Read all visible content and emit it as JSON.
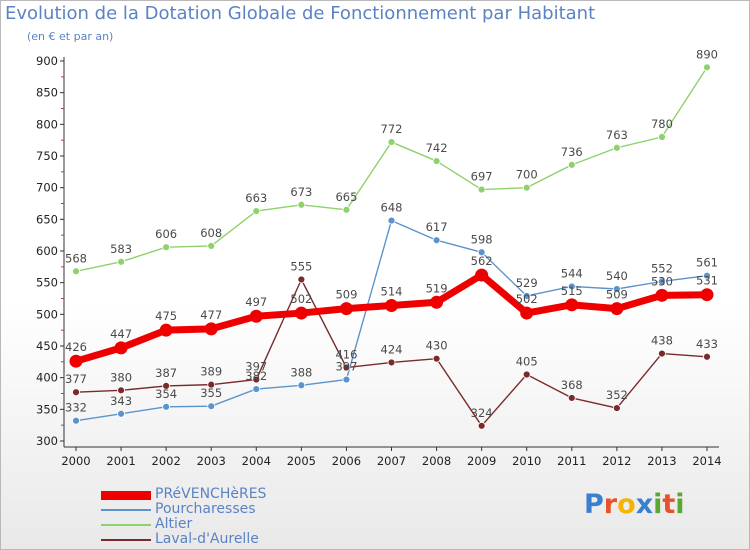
{
  "title": "Evolution de la Dotation Globale de Fonctionnement par Habitant",
  "subtitle": "(en € et par an)",
  "logo": {
    "text": "Proxiti",
    "letters": [
      {
        "ch": "P",
        "color": "#3b7fd0"
      },
      {
        "ch": "r",
        "color": "#e8522a"
      },
      {
        "ch": "o",
        "color": "#f4b400"
      },
      {
        "ch": "x",
        "color": "#3b7fd0"
      },
      {
        "ch": "i",
        "color": "#5aa832"
      },
      {
        "ch": "t",
        "color": "#e8522a"
      },
      {
        "ch": "i",
        "color": "#5aa832"
      }
    ]
  },
  "chart_data": {
    "type": "line",
    "x": [
      2000,
      2001,
      2002,
      2003,
      2004,
      2005,
      2006,
      2007,
      2008,
      2009,
      2010,
      2011,
      2012,
      2013,
      2014
    ],
    "ylim": [
      300,
      900
    ],
    "yticks": [
      300,
      350,
      400,
      450,
      500,
      550,
      600,
      650,
      700,
      750,
      800,
      850,
      900
    ],
    "grid": false,
    "legend_position": "bottom-left",
    "series": [
      {
        "name": "PRéVENCHèRES",
        "color": "#ee0000",
        "values": [
          426,
          447,
          475,
          477,
          497,
          502,
          509,
          514,
          519,
          562,
          502,
          515,
          509,
          530,
          531
        ],
        "labels": [
          "426",
          "447",
          "475",
          "477",
          "497",
          "502",
          "509",
          "514",
          "519",
          "562",
          "502",
          "515",
          "509",
          "530",
          "531"
        ]
      },
      {
        "name": "Pourcharesses",
        "color": "#5b94cc",
        "values": [
          332,
          343,
          354,
          355,
          382,
          388,
          397,
          648,
          617,
          598,
          529,
          544,
          540,
          552,
          561
        ],
        "labels": [
          "332",
          "343",
          "354",
          "355",
          "382",
          "388",
          "397",
          "648",
          "617",
          "598",
          "529",
          "544",
          "540",
          "552",
          "561"
        ]
      },
      {
        "name": "Altier",
        "color": "#8fd16c",
        "values": [
          568,
          583,
          606,
          608,
          663,
          673,
          665,
          772,
          742,
          697,
          700,
          736,
          763,
          780,
          890
        ],
        "labels": [
          "568",
          "583",
          "606",
          "608",
          "663",
          "673",
          "665",
          "772",
          "742",
          "697",
          "700",
          "736",
          "763",
          "780",
          "890"
        ]
      },
      {
        "name": "Laval-d'Aurelle",
        "color": "#7a2a2a",
        "values": [
          377,
          380,
          387,
          389,
          397,
          555,
          416,
          424,
          430,
          324,
          405,
          368,
          352,
          438,
          433
        ],
        "labels": [
          "377",
          "380",
          "387",
          "389",
          "397",
          "555",
          "416",
          "424",
          "430",
          "324",
          "405",
          "368",
          "352",
          "438",
          "433"
        ]
      }
    ]
  }
}
